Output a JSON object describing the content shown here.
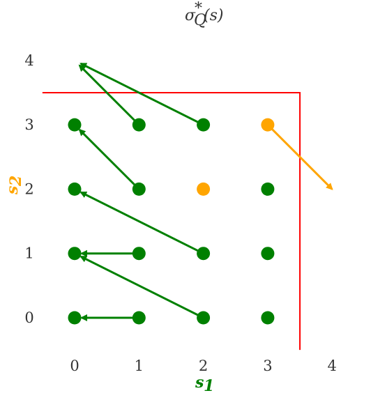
{
  "chart_data": {
    "type": "scatter",
    "title": "σ*Q(s)",
    "title_parts": {
      "base": "σ",
      "sup": "*",
      "sub": "Q",
      "arg": "(s)"
    },
    "xlabel": {
      "base": "s",
      "sub": "1"
    },
    "ylabel": {
      "base": "s",
      "sub": "2"
    },
    "x_ticks": [
      "0",
      "1",
      "2",
      "3",
      "4"
    ],
    "y_ticks": [
      "0",
      "1",
      "2",
      "3",
      "4"
    ],
    "xlim": [
      -0.5,
      4.5
    ],
    "ylim": [
      -0.5,
      4.5
    ],
    "colors": {
      "policy": "#008000",
      "special": "#FFA500",
      "boundary": "#FF0000",
      "xlabel": "#008000",
      "ylabel": "#FFA500"
    },
    "points": [
      {
        "x": 0,
        "y": 0,
        "kind": "policy"
      },
      {
        "x": 1,
        "y": 0,
        "kind": "policy"
      },
      {
        "x": 2,
        "y": 0,
        "kind": "policy"
      },
      {
        "x": 3,
        "y": 0,
        "kind": "policy"
      },
      {
        "x": 0,
        "y": 1,
        "kind": "policy"
      },
      {
        "x": 1,
        "y": 1,
        "kind": "policy"
      },
      {
        "x": 2,
        "y": 1,
        "kind": "policy"
      },
      {
        "x": 3,
        "y": 1,
        "kind": "policy"
      },
      {
        "x": 0,
        "y": 2,
        "kind": "policy"
      },
      {
        "x": 1,
        "y": 2,
        "kind": "policy"
      },
      {
        "x": 2,
        "y": 2,
        "kind": "special"
      },
      {
        "x": 3,
        "y": 2,
        "kind": "policy"
      },
      {
        "x": 0,
        "y": 3,
        "kind": "policy"
      },
      {
        "x": 1,
        "y": 3,
        "kind": "policy"
      },
      {
        "x": 2,
        "y": 3,
        "kind": "policy"
      },
      {
        "x": 3,
        "y": 3,
        "kind": "special"
      }
    ],
    "arrows": [
      {
        "from": [
          1,
          0
        ],
        "to": [
          0,
          0
        ],
        "kind": "policy"
      },
      {
        "from": [
          2,
          0
        ],
        "to": [
          0,
          1
        ],
        "kind": "policy"
      },
      {
        "from": [
          1,
          1
        ],
        "to": [
          0,
          1
        ],
        "kind": "policy"
      },
      {
        "from": [
          2,
          1
        ],
        "to": [
          0,
          2
        ],
        "kind": "policy"
      },
      {
        "from": [
          1,
          2
        ],
        "to": [
          0,
          3
        ],
        "kind": "policy"
      },
      {
        "from": [
          1,
          3
        ],
        "to": [
          0,
          4
        ],
        "kind": "policy"
      },
      {
        "from": [
          2,
          3
        ],
        "to": [
          0,
          4
        ],
        "kind": "policy"
      },
      {
        "from": [
          3,
          3
        ],
        "to": [
          4,
          2
        ],
        "kind": "special"
      }
    ],
    "boundary": [
      [
        -0.5,
        3.5
      ],
      [
        3.5,
        3.5
      ],
      [
        3.5,
        -0.5
      ]
    ]
  }
}
